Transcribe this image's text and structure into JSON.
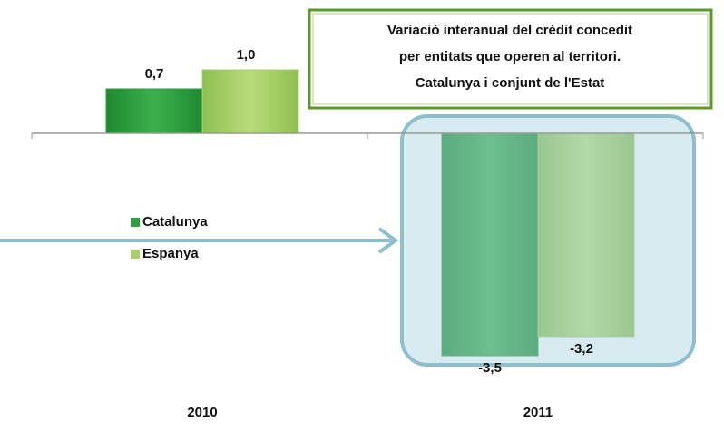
{
  "chart_data": {
    "type": "bar",
    "title": [
      "Variació interanual del crèdit concedit",
      "per entitats que operen al territori.",
      "Catalunya i conjunt de l'Estat"
    ],
    "categories": [
      "2010",
      "2011"
    ],
    "series": [
      {
        "name": "Catalunya",
        "color": "#2f9e3f",
        "values": [
          0.7,
          -3.5
        ],
        "value_labels": [
          "0,7",
          "-3,5"
        ]
      },
      {
        "name": "Espanya",
        "color": "#a8cf68",
        "values": [
          1.0,
          -3.2
        ],
        "value_labels": [
          "1,0",
          "-3,2"
        ]
      }
    ],
    "ylim": [
      -4.5,
      2
    ]
  }
}
